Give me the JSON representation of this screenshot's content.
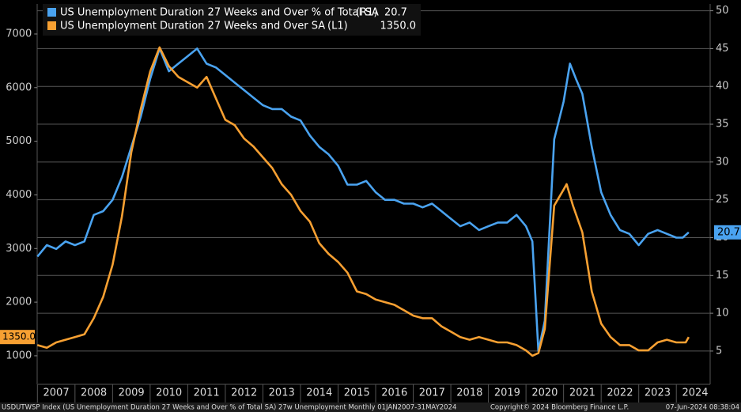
{
  "chart_data": {
    "type": "line",
    "series": [
      {
        "name": "US Unemployment Duration 27 Weeks and Over % of Total SA",
        "axis_tag": "(R1)",
        "last_label": "20.7",
        "axis": "y2",
        "color": "#4aa3f0",
        "x": [
          2007.0,
          2007.25,
          2007.5,
          2007.75,
          2008.0,
          2008.25,
          2008.5,
          2008.75,
          2009.0,
          2009.25,
          2009.5,
          2009.75,
          2010.0,
          2010.25,
          2010.5,
          2010.75,
          2011.0,
          2011.25,
          2011.5,
          2011.75,
          2012.0,
          2012.25,
          2012.5,
          2012.75,
          2013.0,
          2013.25,
          2013.5,
          2013.75,
          2014.0,
          2014.25,
          2014.5,
          2014.75,
          2015.0,
          2015.25,
          2015.5,
          2015.75,
          2016.0,
          2016.25,
          2016.5,
          2016.75,
          2017.0,
          2017.25,
          2017.5,
          2017.75,
          2018.0,
          2018.25,
          2018.5,
          2018.75,
          2019.0,
          2019.25,
          2019.5,
          2019.75,
          2020.0,
          2020.17,
          2020.33,
          2020.5,
          2020.75,
          2021.0,
          2021.17,
          2021.33,
          2021.5,
          2021.75,
          2022.0,
          2022.25,
          2022.5,
          2022.75,
          2023.0,
          2023.25,
          2023.5,
          2023.75,
          2024.0,
          2024.17,
          2024.33
        ],
        "values": [
          17.5,
          19,
          18.5,
          19.5,
          19,
          19.5,
          23,
          23.5,
          25,
          28,
          32,
          36,
          41,
          45,
          42,
          43,
          44,
          45,
          43,
          42.5,
          41.5,
          40.5,
          39.5,
          38.5,
          37.5,
          37,
          37,
          36,
          35.5,
          33.5,
          32,
          31,
          29.5,
          27,
          27,
          27.5,
          26,
          25,
          25,
          24.5,
          24.5,
          24,
          24.5,
          23.5,
          22.5,
          21.5,
          22,
          21,
          21.5,
          22,
          22,
          23,
          21.5,
          19.5,
          5,
          9,
          33,
          38,
          43,
          41,
          39,
          32,
          26,
          23,
          21,
          20.5,
          19,
          20.5,
          21,
          20.5,
          20,
          20,
          20.7
        ]
      },
      {
        "name": "US Unemployment Duration 27 Weeks and Over SA",
        "axis_tag": "(L1)",
        "last_label": "1350.0",
        "axis": "y",
        "color": "#f7a032",
        "x": [
          2007.0,
          2007.25,
          2007.5,
          2007.75,
          2008.0,
          2008.25,
          2008.5,
          2008.75,
          2009.0,
          2009.25,
          2009.5,
          2009.75,
          2010.0,
          2010.25,
          2010.5,
          2010.75,
          2011.0,
          2011.25,
          2011.5,
          2011.75,
          2012.0,
          2012.25,
          2012.5,
          2012.75,
          2013.0,
          2013.25,
          2013.5,
          2013.75,
          2014.0,
          2014.25,
          2014.5,
          2014.75,
          2015.0,
          2015.25,
          2015.5,
          2015.75,
          2016.0,
          2016.25,
          2016.5,
          2016.75,
          2017.0,
          2017.25,
          2017.5,
          2017.75,
          2018.0,
          2018.25,
          2018.5,
          2018.75,
          2019.0,
          2019.25,
          2019.5,
          2019.75,
          2020.0,
          2020.17,
          2020.33,
          2020.5,
          2020.75,
          2021.0,
          2021.08,
          2021.25,
          2021.5,
          2021.75,
          2022.0,
          2022.25,
          2022.5,
          2022.75,
          2023.0,
          2023.25,
          2023.5,
          2023.75,
          2024.0,
          2024.25,
          2024.33
        ],
        "values": [
          1200,
          1150,
          1250,
          1300,
          1350,
          1400,
          1700,
          2100,
          2700,
          3600,
          4800,
          5600,
          6300,
          6750,
          6400,
          6200,
          6100,
          6000,
          6200,
          5800,
          5400,
          5300,
          5050,
          4900,
          4700,
          4500,
          4200,
          4000,
          3700,
          3500,
          3100,
          2900,
          2750,
          2550,
          2200,
          2150,
          2050,
          2000,
          1950,
          1850,
          1750,
          1700,
          1700,
          1550,
          1450,
          1350,
          1300,
          1350,
          1300,
          1250,
          1250,
          1200,
          1100,
          1000,
          1050,
          1500,
          3800,
          4100,
          4200,
          3800,
          3300,
          2200,
          1600,
          1350,
          1200,
          1200,
          1100,
          1100,
          1250,
          1300,
          1250,
          1250,
          1350
        ]
      }
    ],
    "xlim": [
      2007,
      2024.9
    ],
    "xticks": [
      2007,
      2008,
      2009,
      2010,
      2011,
      2012,
      2013,
      2014,
      2015,
      2016,
      2017,
      2018,
      2019,
      2020,
      2021,
      2022,
      2023,
      2024
    ],
    "ylim": [
      468,
      7560
    ],
    "yticks": [
      1000,
      2000,
      3000,
      4000,
      5000,
      6000,
      7000
    ],
    "y2lim": [
      0.6,
      50.9
    ],
    "y2ticks": [
      5,
      10,
      15,
      20,
      25,
      30,
      35,
      40,
      45,
      50
    ],
    "grid": true,
    "footer": {
      "source": "USDUTWSP Index (US Unemployment Duration 27 Weeks and Over % of Total SA) 27w Unemployment  Monthly 01JAN2007-31MAY2024",
      "copyright": "Copyright© 2024 Bloomberg Finance L.P.",
      "timestamp": "07-Jun-2024 08:38:04"
    }
  }
}
